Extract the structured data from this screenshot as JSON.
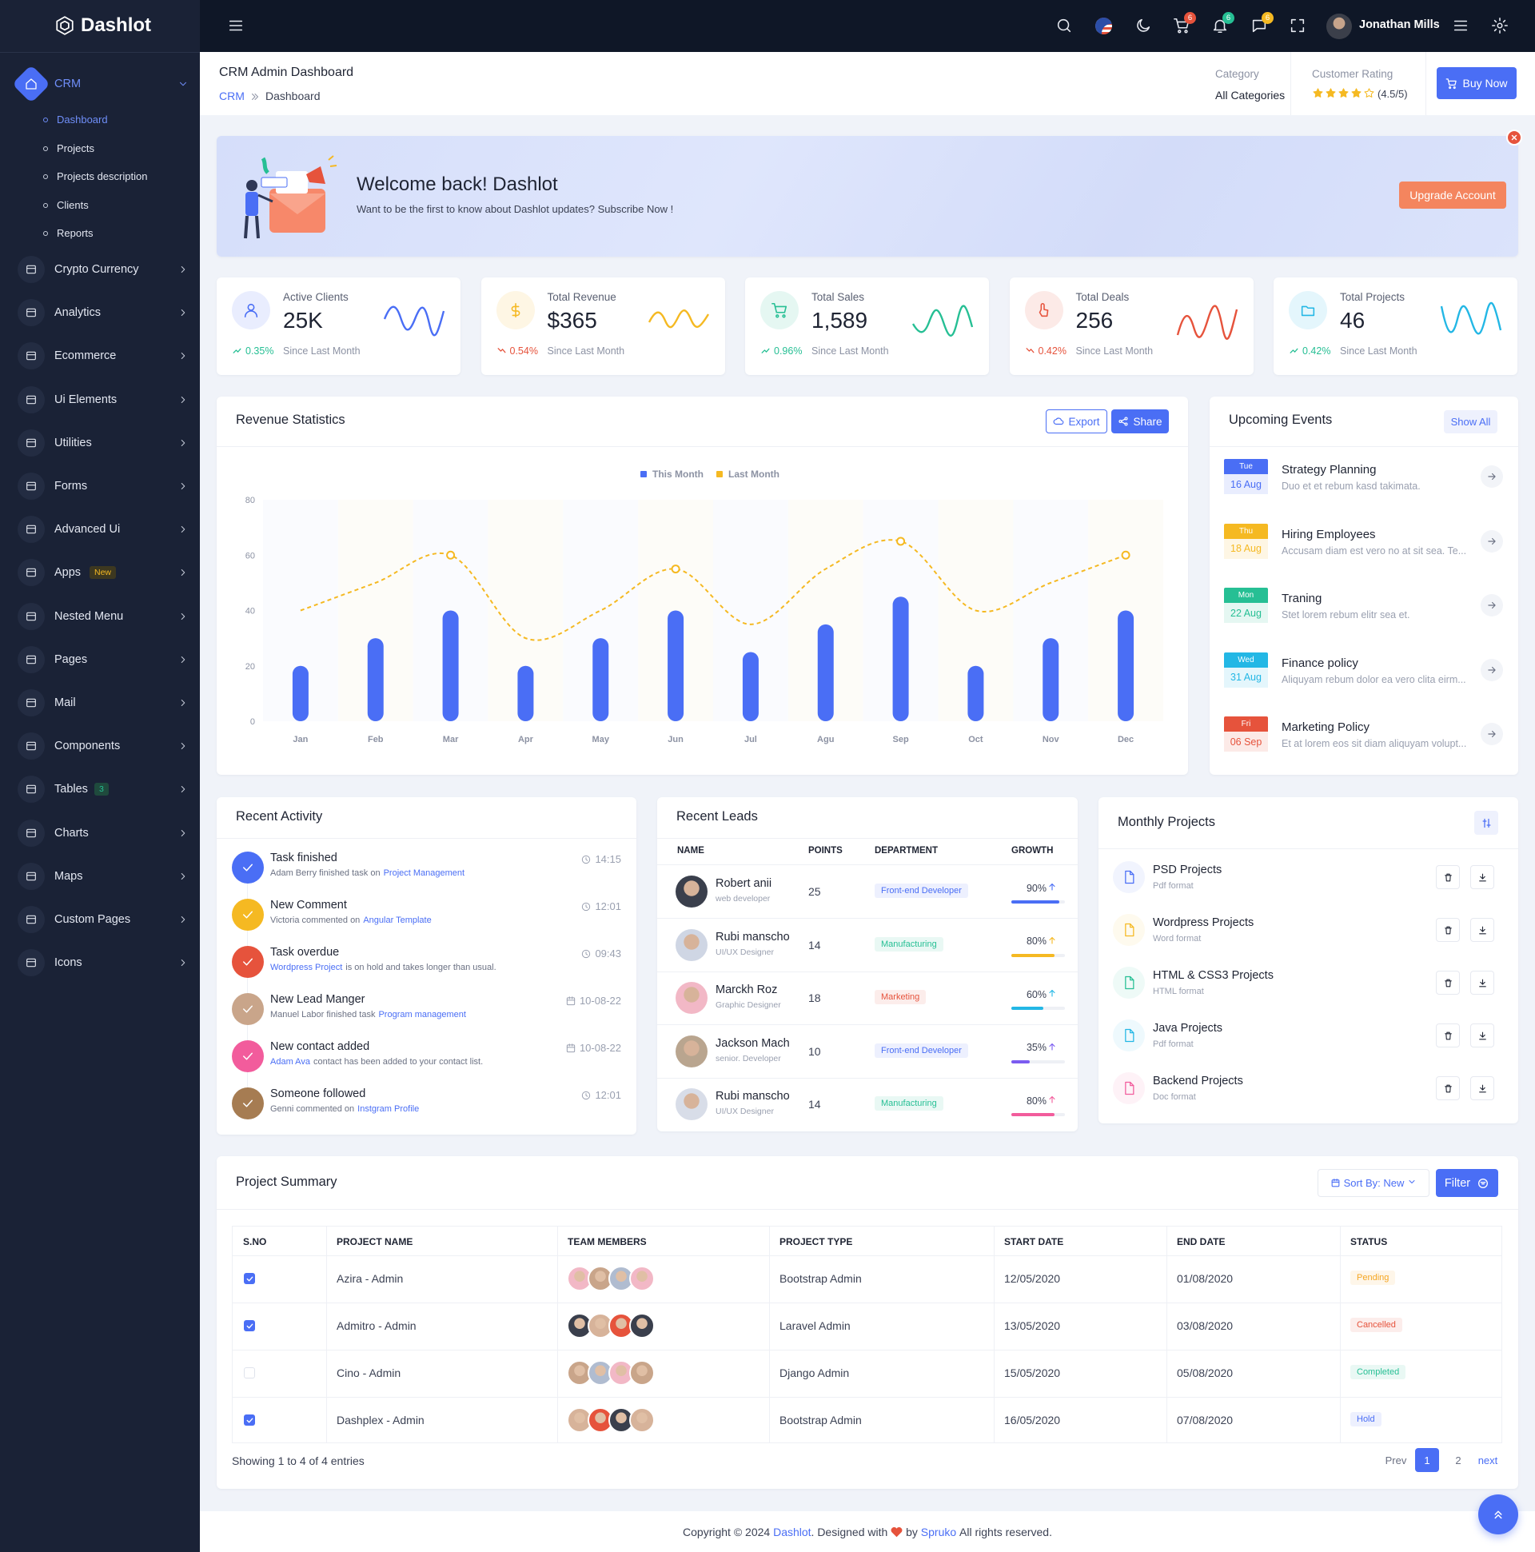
{
  "header": {
    "brand": "Dashlot",
    "user": "Jonathan Mills",
    "badges": [
      {
        "value": "6",
        "color": "#e6533c"
      },
      {
        "value": "6",
        "color": "#26bf94"
      },
      {
        "value": "6",
        "color": "#f5b922"
      }
    ]
  },
  "sidebar": {
    "menu": [
      {
        "label": "CRM",
        "children": [
          "Dashboard",
          "Projects",
          "Projects description",
          "Clients",
          "Reports"
        ]
      },
      {
        "label": "Crypto Currency"
      },
      {
        "label": "Analytics"
      },
      {
        "label": "Ecommerce"
      },
      {
        "label": "Ui Elements"
      },
      {
        "label": "Utilities"
      },
      {
        "label": "Forms"
      },
      {
        "label": "Advanced Ui"
      },
      {
        "label": "Apps",
        "badge": "New"
      },
      {
        "label": "Nested Menu"
      },
      {
        "label": "Pages"
      },
      {
        "label": "Mail"
      },
      {
        "label": "Components"
      },
      {
        "label": "Tables",
        "badge": "3"
      },
      {
        "label": "Charts"
      },
      {
        "label": "Maps"
      },
      {
        "label": "Custom Pages"
      },
      {
        "label": "Icons"
      }
    ]
  },
  "page_header": {
    "title": "CRM Admin Dashboard",
    "breadcrumb": [
      "CRM",
      "Dashboard"
    ],
    "category_label": "Category",
    "category": "All Categories",
    "rating_label": "Customer Rating",
    "rating": "(4.5/5)",
    "buy_button": "Buy Now"
  },
  "banner": {
    "title": "Welcome back! Dashlot",
    "text": "Want to be the first to know about Dashlot updates? Subscribe Now !",
    "button": "Upgrade Account"
  },
  "stats": [
    {
      "label": "Active Clients",
      "value": "25K",
      "change": "0.35%",
      "trend": "up",
      "note": "Since Last Month",
      "color": "#4a6ef5"
    },
    {
      "label": "Total Revenue",
      "value": "$365",
      "change": "0.54%",
      "trend": "down",
      "note": "Since Last Month",
      "color": "#f5b922"
    },
    {
      "label": "Total Sales",
      "value": "1,589",
      "change": "0.96%",
      "trend": "up",
      "note": "Since Last Month",
      "color": "#26bf94"
    },
    {
      "label": "Total Deals",
      "value": "256",
      "change": "0.42%",
      "trend": "down",
      "note": "Since Last Month",
      "color": "#e6533c"
    },
    {
      "label": "Total Projects",
      "value": "46",
      "change": "0.42%",
      "trend": "up",
      "note": "Since Last Month",
      "color": "#23b7e5"
    }
  ],
  "revenue": {
    "title": "Revenue Statistics",
    "export": "Export",
    "share": "Share"
  },
  "chart_data": {
    "type": "bar",
    "categories": [
      "Jan",
      "Feb",
      "Mar",
      "Apr",
      "May",
      "Jun",
      "Jul",
      "Agu",
      "Sep",
      "Oct",
      "Nov",
      "Dec"
    ],
    "series": [
      {
        "name": "This Month",
        "color": "#4a6ef5",
        "values": [
          20,
          30,
          40,
          20,
          30,
          40,
          25,
          35,
          45,
          20,
          30,
          40
        ]
      },
      {
        "name": "Last Month",
        "type": "line",
        "color": "#f5b922",
        "values": [
          40,
          50,
          60,
          30,
          40,
          55,
          35,
          55,
          65,
          40,
          50,
          60
        ]
      }
    ],
    "ylim": [
      0,
      80
    ],
    "yticks": [
      0,
      20,
      40,
      60,
      80
    ],
    "grid": false
  },
  "events": {
    "title": "Upcoming Events",
    "show_all": "Show All",
    "items": [
      {
        "day": "Tue",
        "date": "16 Aug",
        "title": "Strategy Planning",
        "text": "Duo et et rebum kasd takimata.",
        "color": "#4a6ef5"
      },
      {
        "day": "Thu",
        "date": "18 Aug",
        "title": "Hiring Employees",
        "text": "Accusam diam est vero no at sit sea. Te...",
        "color": "#f5b922"
      },
      {
        "day": "Mon",
        "date": "22 Aug",
        "title": "Traning",
        "text": "Stet lorem rebum elitr sea et.",
        "color": "#26bf94"
      },
      {
        "day": "Wed",
        "date": "31 Aug",
        "title": "Finance policy",
        "text": "Aliquyam rebum dolor ea vero clita eirm...",
        "color": "#23b7e5"
      },
      {
        "day": "Fri",
        "date": "06 Sep",
        "title": "Marketing Policy",
        "text": "Et at lorem eos sit diam aliquyam volupt...",
        "color": "#e6533c"
      }
    ]
  },
  "activity": {
    "title": "Recent Activity",
    "items": [
      {
        "title": "Task finished",
        "desc": [
          {
            "text": "Adam Berry finished task on"
          },
          {
            "link": "Project Management"
          }
        ],
        "time": "14:15",
        "color": "#4a6ef5"
      },
      {
        "title": "New Comment",
        "desc": [
          {
            "text": "Victoria commented on"
          },
          {
            "link": "Angular Template"
          }
        ],
        "time": "12:01",
        "color": "#f5b922"
      },
      {
        "title": "Task overdue",
        "desc": [
          {
            "link": "Wordpress Project"
          },
          {
            "text": "is on hold and takes longer than usual."
          }
        ],
        "time": "09:43",
        "color": "#e6533c"
      },
      {
        "title": "New Lead Manger",
        "desc": [
          {
            "text": "Manuel Labor finished task"
          },
          {
            "link": "Program management"
          }
        ],
        "time": "10-08-22",
        "color": "#c9a58a"
      },
      {
        "title": "New contact added",
        "desc": [
          {
            "link": "Adam Ava"
          },
          {
            "text": "contact has been added to your contact list."
          }
        ],
        "time": "10-08-22",
        "color": "#f25c9c"
      },
      {
        "title": "Someone followed",
        "desc": [
          {
            "text": "Genni commented on"
          },
          {
            "link": "Instgram Profile"
          }
        ],
        "time": "12:01",
        "color": "#a67c52"
      }
    ]
  },
  "leads": {
    "title": "Recent Leads",
    "columns": [
      "NAME",
      "POINTS",
      "DEPARTMENT",
      "GROWTH"
    ],
    "rows": [
      {
        "name": "Robert anii",
        "role": "web developer",
        "points": 25,
        "department": "Front-end Developer",
        "dept_color": "#4a6ef5",
        "growth": 90,
        "growth_label": "90%",
        "color": "#4a6ef5"
      },
      {
        "name": "Rubi manscho",
        "role": "UI/UX Designer",
        "points": 14,
        "department": "Manufacturing",
        "dept_color": "#26bf94",
        "growth": 80,
        "growth_label": "80%",
        "color": "#f5b922"
      },
      {
        "name": "Marckh Roz",
        "role": "Graphic Designer",
        "points": 18,
        "department": "Marketing",
        "dept_color": "#e6533c",
        "growth": 60,
        "growth_label": "60%",
        "color": "#23b7e5"
      },
      {
        "name": "Jackson Mach",
        "role": "senior. Developer",
        "points": 10,
        "department": "Front-end Developer",
        "dept_color": "#4a6ef5",
        "growth": 35,
        "growth_label": "35%",
        "color": "#7b5cf0"
      },
      {
        "name": "Rubi manscho",
        "role": "UI/UX Designer",
        "points": 14,
        "department": "Manufacturing",
        "dept_color": "#26bf94",
        "growth": 80,
        "growth_label": "80%",
        "color": "#f25c9c"
      }
    ]
  },
  "monthly_projects": {
    "title": "Monthly Projects",
    "items": [
      {
        "name": "PSD Projects",
        "format": "Pdf format",
        "color": "#4a6ef5"
      },
      {
        "name": "Wordpress Projects",
        "format": "Word format",
        "color": "#f5b922"
      },
      {
        "name": "HTML & CSS3 Projects",
        "format": "HTML format",
        "color": "#26bf94"
      },
      {
        "name": "Java Projects",
        "format": "Pdf format",
        "color": "#23b7e5"
      },
      {
        "name": "Backend Projects",
        "format": "Doc format",
        "color": "#f25c9c"
      }
    ]
  },
  "project_summary": {
    "title": "Project Summary",
    "sort": "Sort By: New",
    "filter": "Filter",
    "columns": [
      "S.NO",
      "PROJECT NAME",
      "TEAM MEMBERS",
      "PROJECT TYPE",
      "START DATE",
      "END DATE",
      "STATUS"
    ],
    "rows": [
      {
        "checked": true,
        "name": "Azira - Admin",
        "type": "Bootstrap Admin",
        "start": "12/05/2020",
        "end": "01/08/2020",
        "status": "Pending",
        "status_color": "#f5a623"
      },
      {
        "checked": true,
        "name": "Admitro - Admin",
        "type": "Laravel Admin",
        "start": "13/05/2020",
        "end": "03/08/2020",
        "status": "Cancelled",
        "status_color": "#e6533c"
      },
      {
        "checked": false,
        "name": "Cino - Admin",
        "type": "Django Admin",
        "start": "15/05/2020",
        "end": "05/08/2020",
        "status": "Completed",
        "status_color": "#26bf94"
      },
      {
        "checked": true,
        "name": "Dashplex - Admin",
        "type": "Bootstrap Admin",
        "start": "16/05/2020",
        "end": "07/08/2020",
        "status": "Hold",
        "status_color": "#4a6ef5"
      }
    ],
    "info": "Showing 1 to 4 of 4 entries",
    "pagination": [
      "Prev",
      "1",
      "2",
      "next"
    ]
  },
  "footer": [
    {
      "text": "Copyright © 2024"
    },
    {
      "link": "Dashlot"
    },
    {
      "text": ". Designed with"
    },
    {
      "text": "by"
    },
    {
      "link": "Spruko"
    },
    {
      "text": "All rights reserved."
    }
  ]
}
